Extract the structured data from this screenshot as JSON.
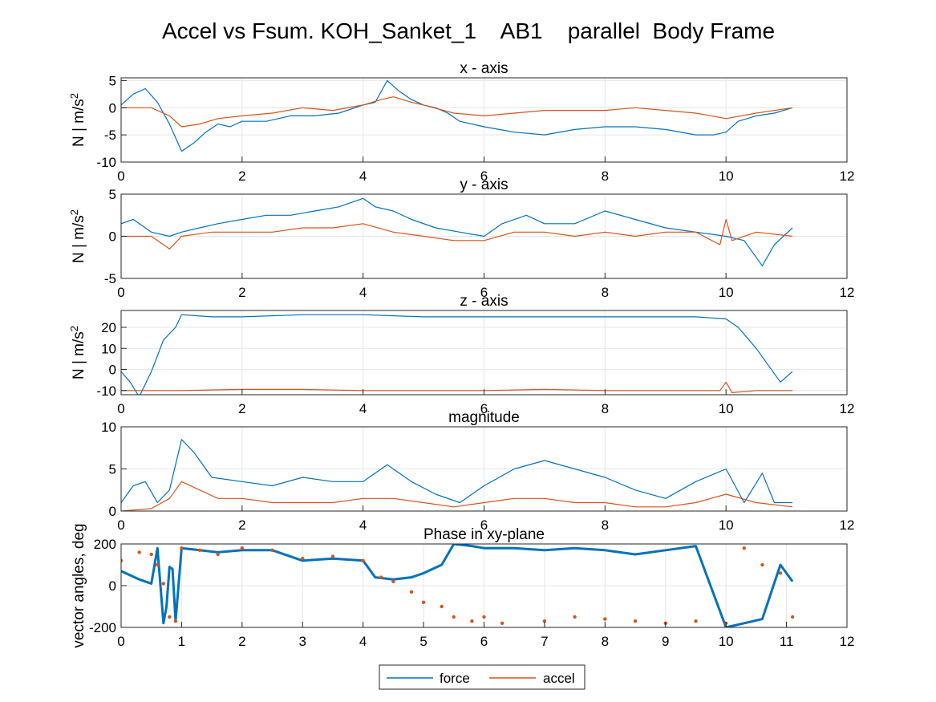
{
  "figure": {
    "title": "Accel vs Fsum. KOH_Sanket_1    AB1    parallel  Body Frame"
  },
  "colors": {
    "force": "#0072BD",
    "accel": "#D95319",
    "grid": "#e6e6e6",
    "axis": "#262626"
  },
  "legend": {
    "position": "bottom-center",
    "entries": [
      {
        "label": "force",
        "color": "#0072BD"
      },
      {
        "label": "accel",
        "color": "#D95319"
      }
    ]
  },
  "chart_data": [
    {
      "type": "line",
      "title": "x - axis",
      "ylabel": "N | m/s",
      "ylabel_sup": "2",
      "xlim": [
        0,
        12
      ],
      "ylim": [
        -10,
        5.5
      ],
      "xticks": [
        0,
        2,
        4,
        6,
        8,
        10,
        12
      ],
      "yticks": [
        -10,
        -5,
        0,
        5
      ],
      "grid": true,
      "series": [
        {
          "name": "force",
          "style": "line",
          "x": [
            0,
            0.2,
            0.4,
            0.6,
            0.8,
            1.0,
            1.2,
            1.4,
            1.6,
            1.8,
            2.0,
            2.4,
            2.8,
            3.2,
            3.6,
            4.0,
            4.2,
            4.4,
            4.6,
            4.8,
            5.0,
            5.2,
            5.4,
            5.6,
            6.0,
            6.5,
            7.0,
            7.5,
            8.0,
            8.5,
            9.0,
            9.5,
            9.8,
            10.0,
            10.2,
            10.5,
            10.8,
            11.1
          ],
          "y": [
            0.5,
            2.5,
            3.5,
            1.0,
            -3.0,
            -8.0,
            -6.5,
            -4.5,
            -3.0,
            -3.5,
            -2.5,
            -2.5,
            -1.5,
            -1.5,
            -1.0,
            0.5,
            1.0,
            5.0,
            3.0,
            1.5,
            0.5,
            0.0,
            -1.0,
            -2.5,
            -3.5,
            -4.5,
            -5.0,
            -4.0,
            -3.5,
            -3.5,
            -4.0,
            -5.0,
            -5.0,
            -4.5,
            -2.5,
            -1.5,
            -1.0,
            0.0
          ]
        },
        {
          "name": "accel",
          "style": "line",
          "x": [
            0,
            0.5,
            0.8,
            1.0,
            1.3,
            1.6,
            2.0,
            2.5,
            3.0,
            3.5,
            4.0,
            4.3,
            4.5,
            4.8,
            5.0,
            5.5,
            6.0,
            6.5,
            7.0,
            7.5,
            8.0,
            8.5,
            9.0,
            9.5,
            10.0,
            10.5,
            11.1
          ],
          "y": [
            0,
            0,
            -1.5,
            -3.5,
            -3.0,
            -2.0,
            -1.5,
            -1.0,
            0,
            -0.5,
            0.5,
            1.5,
            2.0,
            1.0,
            0.5,
            -1.0,
            -1.5,
            -1.0,
            -0.5,
            -0.5,
            -0.5,
            0,
            -0.5,
            -1.0,
            -2.0,
            -1.0,
            0
          ]
        }
      ]
    },
    {
      "type": "line",
      "title": "y - axis",
      "ylabel": "N | m/s",
      "ylabel_sup": "2",
      "xlim": [
        0,
        12
      ],
      "ylim": [
        -5,
        5
      ],
      "xticks": [
        0,
        2,
        4,
        6,
        8,
        10,
        12
      ],
      "yticks": [
        -5,
        0,
        5
      ],
      "grid": true,
      "series": [
        {
          "name": "force",
          "style": "line",
          "x": [
            0,
            0.2,
            0.5,
            0.8,
            1.0,
            1.3,
            1.6,
            2.0,
            2.4,
            2.8,
            3.2,
            3.6,
            4.0,
            4.2,
            4.5,
            4.8,
            5.2,
            5.6,
            6.0,
            6.3,
            6.7,
            7.0,
            7.5,
            8.0,
            8.5,
            9.0,
            9.5,
            10.0,
            10.3,
            10.6,
            10.8,
            11.1
          ],
          "y": [
            1.5,
            2.0,
            0.5,
            0,
            0.5,
            1.0,
            1.5,
            2.0,
            2.5,
            2.5,
            3.0,
            3.5,
            4.5,
            3.5,
            3.0,
            2.0,
            1.0,
            0.5,
            0,
            1.5,
            2.5,
            1.5,
            1.5,
            3.0,
            2.0,
            1.0,
            0.5,
            0,
            -0.5,
            -3.5,
            -1.0,
            1.0
          ]
        },
        {
          "name": "accel",
          "style": "line",
          "x": [
            0,
            0.5,
            0.8,
            1.0,
            1.5,
            2.0,
            2.5,
            3.0,
            3.5,
            4.0,
            4.5,
            5.0,
            5.5,
            6.0,
            6.5,
            7.0,
            7.5,
            8.0,
            8.5,
            9.0,
            9.5,
            9.9,
            10.0,
            10.1,
            10.5,
            11.1
          ],
          "y": [
            0,
            0,
            -1.5,
            0,
            0.5,
            0.5,
            0.5,
            1.0,
            1.0,
            1.5,
            0.5,
            0,
            -0.5,
            -0.5,
            0.5,
            0.5,
            0,
            0.5,
            0,
            0.5,
            0.5,
            -1.0,
            2.0,
            -0.5,
            0.5,
            0
          ]
        }
      ]
    },
    {
      "type": "line",
      "title": "z - axis",
      "ylabel": "N | m/s",
      "ylabel_sup": "2",
      "xlim": [
        0,
        12
      ],
      "ylim": [
        -12,
        28
      ],
      "xticks": [
        0,
        2,
        4,
        6,
        8,
        10,
        12
      ],
      "yticks": [
        -10,
        0,
        10,
        20
      ],
      "grid": true,
      "series": [
        {
          "name": "force",
          "style": "line",
          "x": [
            0,
            0.15,
            0.3,
            0.5,
            0.7,
            0.9,
            1.0,
            1.5,
            2.0,
            3.0,
            4.0,
            5.0,
            6.0,
            7.0,
            8.0,
            9.0,
            9.5,
            10.0,
            10.2,
            10.5,
            10.7,
            10.9,
            11.1
          ],
          "y": [
            -1,
            -6,
            -13,
            -1,
            14,
            20,
            26,
            25,
            25,
            26,
            26,
            25,
            25,
            25,
            25,
            25,
            25,
            24,
            20,
            10,
            2,
            -6,
            -1
          ]
        },
        {
          "name": "accel",
          "style": "line",
          "x": [
            0,
            1,
            2,
            3,
            4,
            5,
            6,
            7,
            8,
            9,
            9.9,
            10.0,
            10.1,
            10.5,
            11.1
          ],
          "y": [
            -10,
            -10,
            -9.5,
            -9.5,
            -10,
            -10,
            -10,
            -9.5,
            -10,
            -10,
            -10,
            -6,
            -11,
            -10,
            -10
          ]
        }
      ]
    },
    {
      "type": "line",
      "title": "magnitude",
      "ylabel": "",
      "ylabel_sup": "",
      "xlim": [
        0,
        12
      ],
      "ylim": [
        0,
        10
      ],
      "xticks": [
        0,
        2,
        4,
        6,
        8,
        10,
        12
      ],
      "yticks": [
        0,
        5,
        10
      ],
      "grid": true,
      "series": [
        {
          "name": "force",
          "style": "line",
          "x": [
            0,
            0.2,
            0.4,
            0.6,
            0.8,
            1.0,
            1.2,
            1.5,
            2.0,
            2.5,
            3.0,
            3.5,
            4.0,
            4.4,
            4.8,
            5.2,
            5.6,
            6.0,
            6.5,
            7.0,
            7.5,
            8.0,
            8.5,
            9.0,
            9.5,
            10.0,
            10.3,
            10.6,
            10.8,
            11.1
          ],
          "y": [
            1,
            3,
            3.5,
            1,
            2.5,
            8.5,
            7,
            4,
            3.5,
            3,
            4,
            3.5,
            3.5,
            5.5,
            3.5,
            2,
            1,
            3,
            5,
            6,
            5,
            4,
            2.5,
            1.5,
            3.5,
            5,
            1,
            4.5,
            1,
            1
          ]
        },
        {
          "name": "accel",
          "style": "line",
          "x": [
            0,
            0.5,
            0.8,
            1.0,
            1.3,
            1.6,
            2.0,
            2.5,
            3.0,
            3.5,
            4.0,
            4.5,
            5.0,
            5.5,
            6.0,
            6.5,
            7.0,
            7.5,
            8.0,
            8.5,
            9.0,
            9.5,
            10.0,
            10.5,
            11.1
          ],
          "y": [
            0,
            0.3,
            1.5,
            3.5,
            2.5,
            1.5,
            1.5,
            1,
            1,
            1,
            1.5,
            1.5,
            1,
            0.5,
            1,
            1.5,
            1.5,
            1,
            1,
            0.5,
            0.5,
            1,
            2,
            1,
            0.5
          ]
        }
      ]
    },
    {
      "type": "scatter",
      "title": "Phase in xy-plane",
      "ylabel": "vector angles, deg",
      "ylabel_sup": "",
      "xlim": [
        0,
        12
      ],
      "ylim": [
        -200,
        200
      ],
      "xticks": [
        0,
        1,
        2,
        3,
        4,
        5,
        6,
        7,
        8,
        9,
        10,
        11,
        12
      ],
      "yticks": [
        -200,
        0,
        200
      ],
      "grid": true,
      "series": [
        {
          "name": "force",
          "style": "thick",
          "x": [
            0,
            0.3,
            0.5,
            0.6,
            0.7,
            0.75,
            0.8,
            0.85,
            0.9,
            1.0,
            1.3,
            1.6,
            2.0,
            2.5,
            3.0,
            3.5,
            4.0,
            4.2,
            4.5,
            4.8,
            5.0,
            5.3,
            5.5,
            5.8,
            6.0,
            6.5,
            7.0,
            7.5,
            8.0,
            8.5,
            9.0,
            9.5,
            10.0,
            10.3,
            10.6,
            10.9,
            11.1
          ],
          "y": [
            70,
            30,
            10,
            180,
            -180,
            -100,
            90,
            80,
            -170,
            180,
            170,
            160,
            170,
            170,
            120,
            130,
            120,
            40,
            30,
            40,
            60,
            100,
            200,
            190,
            180,
            180,
            170,
            180,
            170,
            150,
            170,
            190,
            -200,
            -180,
            -160,
            100,
            20
          ]
        },
        {
          "name": "accel",
          "style": "dots",
          "x": [
            0,
            0.3,
            0.5,
            0.6,
            0.7,
            0.8,
            0.9,
            1.0,
            1.3,
            1.6,
            2.0,
            2.5,
            3.0,
            3.5,
            4.0,
            4.3,
            4.5,
            4.8,
            5.0,
            5.3,
            5.5,
            5.8,
            6.0,
            6.3,
            7.0,
            7.5,
            8.0,
            8.5,
            9.0,
            9.5,
            10.0,
            10.3,
            10.6,
            10.9,
            11.1
          ],
          "y": [
            120,
            160,
            150,
            100,
            10,
            -150,
            -170,
            180,
            170,
            150,
            180,
            170,
            130,
            140,
            120,
            40,
            20,
            -30,
            -80,
            -100,
            -150,
            -170,
            -150,
            -180,
            -170,
            -150,
            -160,
            -170,
            -180,
            -170,
            -180,
            180,
            100,
            60,
            -150
          ]
        }
      ]
    }
  ]
}
